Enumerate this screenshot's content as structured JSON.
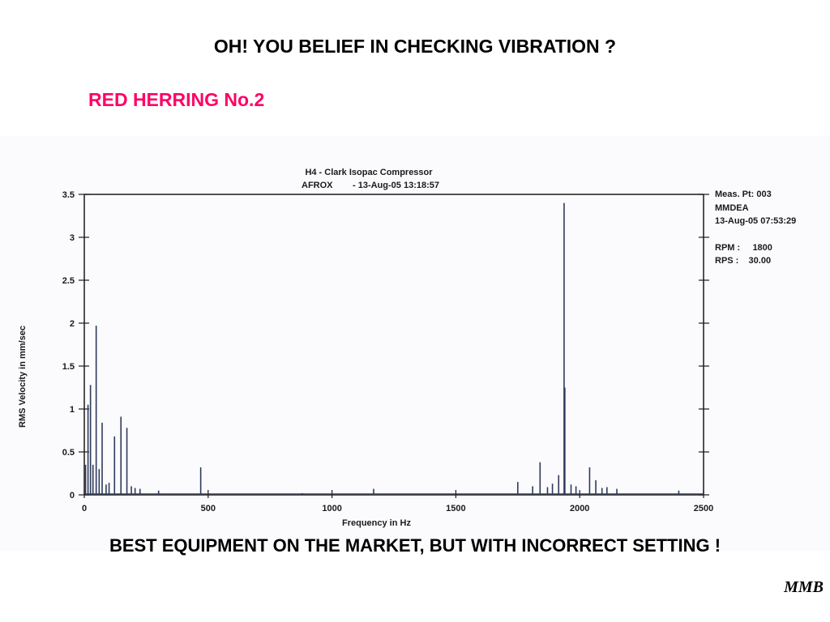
{
  "slide": {
    "headline": "OH! YOU BELIEF IN CHECKING VIBRATION ?",
    "subheading": "RED HERRING No.2",
    "footer": "BEST EQUIPMENT ON THE MARKET, BUT WITH INCORRECT SETTING !",
    "signature": "MMB"
  },
  "colors": {
    "headline": "#000000",
    "subheading": "#ff0066",
    "trace": "#2f3b5c",
    "axis": "#1a1a1a"
  },
  "chart_data": {
    "type": "line",
    "title": "H4   - Clark Isopac Compressor",
    "subtitle_left": "AFROX",
    "subtitle_right": "- 13-Aug-05 13:18:57",
    "xlabel": "Frequency in Hz",
    "ylabel": "RMS Velocity in mm/sec",
    "xlim": [
      0,
      2500
    ],
    "ylim": [
      0,
      3.5
    ],
    "x_ticks": [
      "0",
      "500",
      "1000",
      "1500",
      "2000",
      "2500"
    ],
    "y_ticks": [
      "0",
      "0.5",
      "1",
      "1.5",
      "2",
      "2.5",
      "3",
      "3.5"
    ],
    "grid": false,
    "info_panel": [
      "Meas. Pt: 003",
      "MMDEA",
      "13-Aug-05 07:53:29",
      "RPM :     1800",
      "RPS :    30.00"
    ],
    "peaks": [
      {
        "x": 5,
        "y": 0.35
      },
      {
        "x": 15,
        "y": 1.05
      },
      {
        "x": 25,
        "y": 1.28
      },
      {
        "x": 35,
        "y": 0.35
      },
      {
        "x": 48,
        "y": 1.97
      },
      {
        "x": 60,
        "y": 0.3
      },
      {
        "x": 72,
        "y": 0.84
      },
      {
        "x": 88,
        "y": 0.12
      },
      {
        "x": 100,
        "y": 0.14
      },
      {
        "x": 122,
        "y": 0.68
      },
      {
        "x": 148,
        "y": 0.91
      },
      {
        "x": 172,
        "y": 0.78
      },
      {
        "x": 190,
        "y": 0.1
      },
      {
        "x": 205,
        "y": 0.08
      },
      {
        "x": 225,
        "y": 0.07
      },
      {
        "x": 300,
        "y": 0.05
      },
      {
        "x": 470,
        "y": 0.32
      },
      {
        "x": 880,
        "y": 0.02
      },
      {
        "x": 1168,
        "y": 0.07
      },
      {
        "x": 1750,
        "y": 0.15
      },
      {
        "x": 1810,
        "y": 0.1
      },
      {
        "x": 1840,
        "y": 0.38
      },
      {
        "x": 1870,
        "y": 0.09
      },
      {
        "x": 1890,
        "y": 0.13
      },
      {
        "x": 1915,
        "y": 0.23
      },
      {
        "x": 1937,
        "y": 3.4
      },
      {
        "x": 1940,
        "y": 1.25
      },
      {
        "x": 1965,
        "y": 0.12
      },
      {
        "x": 1985,
        "y": 0.1
      },
      {
        "x": 2040,
        "y": 0.32
      },
      {
        "x": 2065,
        "y": 0.17
      },
      {
        "x": 2090,
        "y": 0.08
      },
      {
        "x": 2110,
        "y": 0.09
      },
      {
        "x": 2150,
        "y": 0.07
      },
      {
        "x": 2400,
        "y": 0.05
      }
    ]
  }
}
